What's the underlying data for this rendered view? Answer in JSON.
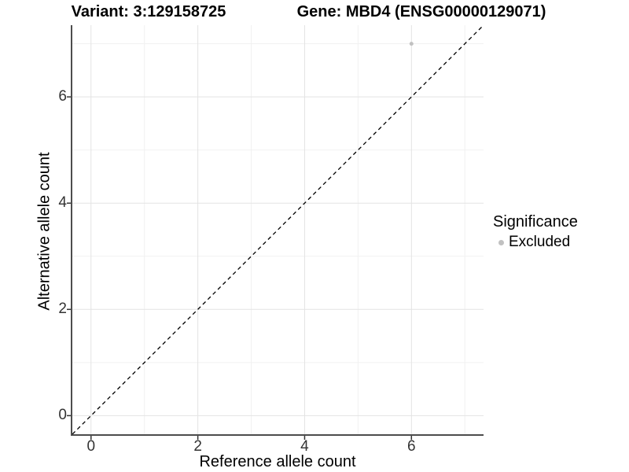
{
  "titles": {
    "variant": "Variant: 3:129158725",
    "gene": "Gene: MBD4 (ENSG00000129071)"
  },
  "axes": {
    "x_label": "Reference allele count",
    "y_label": "Alternative allele count"
  },
  "legend": {
    "title": "Significance",
    "items": [
      {
        "label": "Excluded",
        "color": "#c1c1c1"
      }
    ]
  },
  "chart_data": {
    "type": "scatter",
    "title_left": "Variant: 3:129158725",
    "title_right": "Gene: MBD4 (ENSG00000129071)",
    "xlabel": "Reference allele count",
    "ylabel": "Alternative allele count",
    "xlim": [
      -0.35,
      7.35
    ],
    "ylim": [
      -0.35,
      7.35
    ],
    "x_ticks": [
      0,
      2,
      4,
      6
    ],
    "y_ticks": [
      0,
      2,
      4,
      6
    ],
    "x_minor_ticks": [
      1,
      3,
      5,
      7
    ],
    "y_minor_ticks": [
      1,
      3,
      5,
      7
    ],
    "grid": "major+minor",
    "legend_position": "right",
    "series": [
      {
        "name": "Excluded",
        "color": "#c1c1c1",
        "marker": "circle",
        "points": [
          [
            6,
            7
          ]
        ]
      }
    ],
    "reference_line": {
      "kind": "identity",
      "slope": 1,
      "intercept": 0,
      "style": "dashed",
      "color": "#000000"
    },
    "style_colors": {
      "grid_major": "#e3e3e3",
      "grid_minor": "#f1f1f1",
      "axis_line": "#4d4d4d",
      "tick_mark": "#333333",
      "tick_text": "#333333"
    }
  }
}
